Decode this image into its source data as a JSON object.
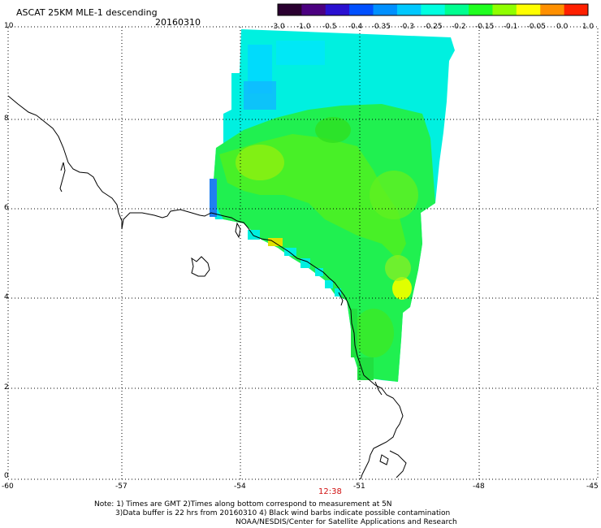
{
  "header": {
    "title": "ASCAT 25KM MLE-1 descending",
    "date": "20160310"
  },
  "colorbar": {
    "ticks": [
      "-3.0",
      "-1.0",
      "-0.5",
      "-0.4",
      "-0.35",
      "-0.3",
      "-0.25",
      "-0.2",
      "-0.15",
      "-0.1",
      "-0.05",
      "0.0",
      "1.0"
    ],
    "colors": [
      "#2a0030",
      "#4b0080",
      "#2a10d0",
      "#0050ff",
      "#0090ff",
      "#00c8ff",
      "#00ffe0",
      "#00ff90",
      "#20ff20",
      "#90ff00",
      "#ffff00",
      "#ff9000",
      "#ff2000"
    ]
  },
  "axes": {
    "x_ticks": [
      "-60",
      "-57",
      "-54",
      "-51",
      "-48",
      "-45"
    ],
    "y_ticks": [
      "10",
      "8",
      "6",
      "4",
      "2",
      "0"
    ]
  },
  "time_label": "12:38",
  "notes": {
    "line1": "Note: 1) Times are GMT 2)Times along bottom correspond to measurement at 5N",
    "line2": "3)Data buffer is 22 hrs from 20160310 4) Black wind barbs indicate possible contamination",
    "line3": "NOAA/NESDIS/Center for Satellite Applications and Research"
  },
  "colors": {
    "coastline": "#000000",
    "grid": "#000000",
    "time_text": "#d01010"
  }
}
